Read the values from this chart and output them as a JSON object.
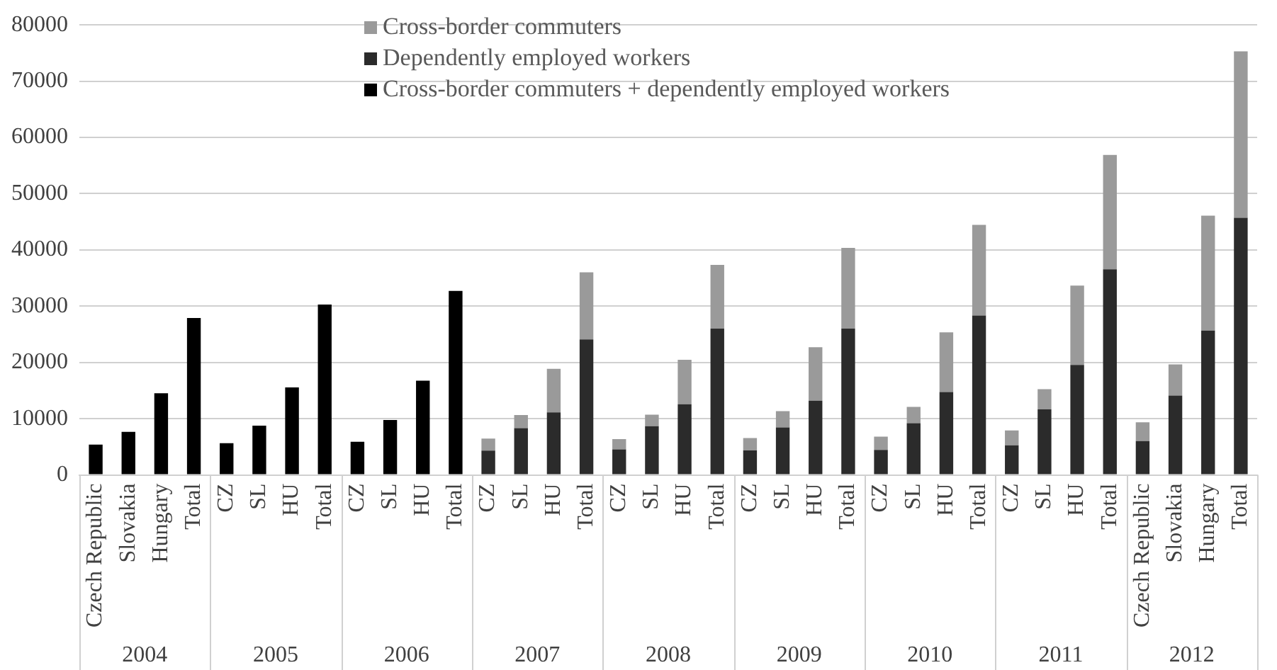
{
  "chart_data": {
    "type": "bar",
    "stacked": true,
    "categories": [
      "Czech Republic",
      "Slovakia",
      "Hungary",
      "Total",
      "CZ",
      "SL",
      "HU",
      "Total",
      "CZ",
      "SL",
      "HU",
      "Total",
      "CZ",
      "SL",
      "HU",
      "Total",
      "CZ",
      "SL",
      "HU",
      "Total",
      "CZ",
      "SL",
      "HU",
      "Total",
      "CZ",
      "SL",
      "HU",
      "Total",
      "CZ",
      "SL",
      "HU",
      "Total",
      "Czech Republic",
      "Slovakia",
      "Hungary",
      "Total"
    ],
    "series": [
      {
        "name": "Cross-border commuters + dependently employed workers",
        "color": "#000000",
        "values": [
          5400,
          7650,
          14500,
          27900,
          5650,
          8750,
          15550,
          30300,
          5900,
          9750,
          16750,
          32700,
          null,
          null,
          null,
          null,
          null,
          null,
          null,
          null,
          null,
          null,
          null,
          null,
          null,
          null,
          null,
          null,
          null,
          null,
          null,
          null,
          null,
          null,
          null,
          null
        ]
      },
      {
        "name": "Dependently employed workers",
        "color": "#2b2b2b",
        "values": [
          null,
          null,
          null,
          null,
          null,
          null,
          null,
          null,
          null,
          null,
          null,
          null,
          4300,
          8300,
          11100,
          24100,
          4550,
          8650,
          12550,
          26000,
          4350,
          8450,
          13200,
          26000,
          4450,
          9200,
          14750,
          28350,
          5250,
          11650,
          19550,
          36550,
          6000,
          14100,
          25650,
          45700
        ]
      },
      {
        "name": "Cross-border commuters",
        "color": "#9a9a9a",
        "values": [
          null,
          null,
          null,
          null,
          null,
          null,
          null,
          null,
          null,
          null,
          null,
          null,
          2150,
          2350,
          7750,
          11900,
          1800,
          2050,
          7900,
          11350,
          2200,
          2900,
          9500,
          14350,
          2350,
          2900,
          10600,
          16100,
          2650,
          3600,
          14100,
          20350,
          3350,
          5550,
          20450,
          29600
        ]
      }
    ],
    "annotations": [
      "2004",
      "2005",
      "2006",
      "2007",
      "2008",
      "2009",
      "2010",
      "2011",
      "2012"
    ],
    "ylim": [
      0,
      80000
    ],
    "yticks": [
      0,
      10000,
      20000,
      30000,
      40000,
      50000,
      60000,
      70000,
      80000
    ],
    "grid": "y",
    "legend": "top"
  }
}
